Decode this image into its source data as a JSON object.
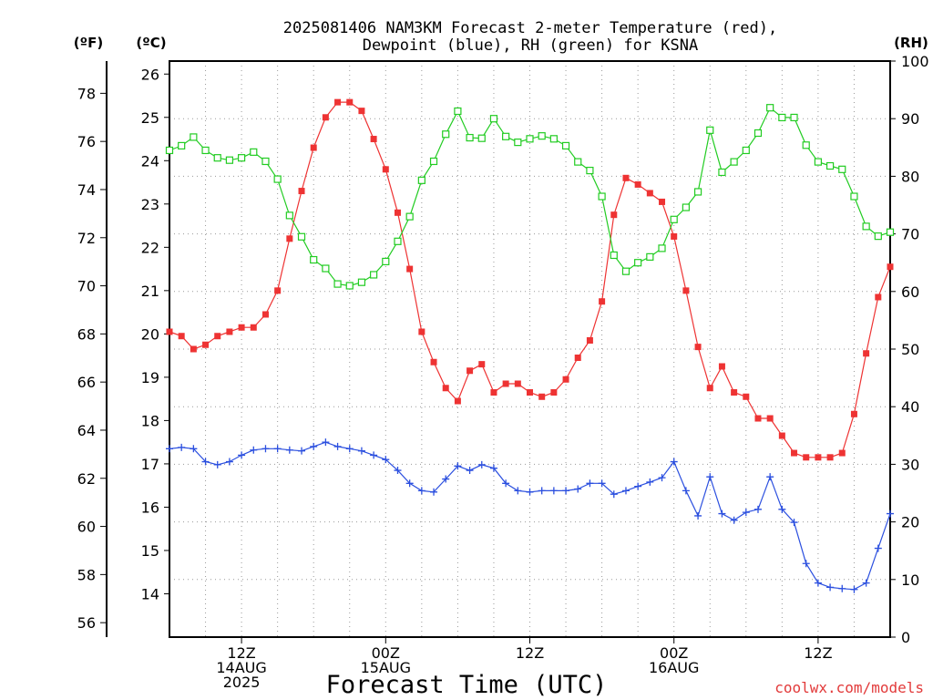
{
  "header": {
    "title_line1": "2025081406 NAM3KM Forecast 2-meter Temperature (red),",
    "title_line2": "Dewpoint (blue), RH (green) for KSNA",
    "unit_f": "(ºF)",
    "unit_c": "(ºC)",
    "unit_rh": "(RH)"
  },
  "footer": {
    "xaxis_title": "Forecast Time (UTC)",
    "credit": "coolwx.com/models"
  },
  "colors": {
    "temperature": "#ee3333",
    "dewpoint": "#2b4fdf",
    "rh": "#22cc22",
    "grid": "#999999",
    "frame": "#000000"
  },
  "chart_data": {
    "type": "line",
    "title": "2025081406 NAM3KM Forecast 2-meter Temperature (red), Dewpoint (blue), RH (green) for KSNA",
    "xlabel": "Forecast Time (UTC)",
    "x_unit": "forecast hour",
    "xlim": [
      0,
      60
    ],
    "x_ticks": [
      {
        "hour": 6,
        "lines": [
          "12Z",
          "14AUG",
          "2025"
        ]
      },
      {
        "hour": 18,
        "lines": [
          "00Z",
          "15AUG"
        ]
      },
      {
        "hour": 30,
        "lines": [
          "12Z"
        ]
      },
      {
        "hour": 42,
        "lines": [
          "00Z",
          "16AUG"
        ]
      },
      {
        "hour": 54,
        "lines": [
          "12Z"
        ]
      }
    ],
    "left_axis_c": {
      "label": "(ºC)",
      "ylim": [
        13.0,
        26.3
      ],
      "ticks": [
        14,
        15,
        16,
        17,
        18,
        19,
        20,
        21,
        22,
        23,
        24,
        25,
        26
      ]
    },
    "left_axis_f": {
      "label": "(ºF)",
      "ticks": [
        56,
        58,
        60,
        62,
        64,
        66,
        68,
        70,
        72,
        74,
        76,
        78
      ]
    },
    "right_axis_rh": {
      "label": "(RH)",
      "ylim": [
        0,
        100
      ],
      "ticks": [
        0,
        10,
        20,
        30,
        40,
        50,
        60,
        70,
        80,
        90,
        100
      ]
    },
    "grid": true,
    "series": [
      {
        "name": "Temperature",
        "axis": "celsius",
        "color": "#ee3333",
        "marker": "filled-square",
        "x": [
          0,
          1,
          2,
          3,
          4,
          5,
          6,
          7,
          8,
          9,
          10,
          11,
          12,
          13,
          14,
          15,
          16,
          17,
          18,
          19,
          20,
          21,
          22,
          23,
          24,
          25,
          26,
          27,
          28,
          29,
          30,
          31,
          32,
          33,
          34,
          35,
          36,
          37,
          38,
          39,
          40,
          41,
          42,
          43,
          44,
          45,
          46,
          47,
          48,
          49,
          50,
          51,
          52,
          53,
          54,
          55,
          56,
          57,
          58,
          59,
          60
        ],
        "y": [
          20.05,
          19.95,
          19.65,
          19.75,
          19.95,
          20.05,
          20.15,
          20.15,
          20.45,
          21.0,
          22.2,
          23.3,
          24.3,
          25.0,
          25.35,
          25.35,
          25.15,
          24.5,
          23.8,
          22.8,
          21.5,
          20.05,
          19.35,
          18.75,
          18.45,
          19.15,
          19.3,
          18.65,
          18.85,
          18.85,
          18.65,
          18.55,
          18.65,
          18.95,
          19.45,
          19.85,
          20.75,
          22.75,
          23.6,
          23.45,
          23.25,
          23.05,
          22.25,
          21.0,
          19.7,
          18.75,
          19.25,
          18.65,
          18.55,
          18.05,
          18.05,
          17.65,
          17.25,
          17.15,
          17.15,
          17.15,
          17.25,
          18.15,
          19.55,
          20.85,
          21.55
        ]
      },
      {
        "name": "Dewpoint",
        "axis": "celsius",
        "color": "#2b4fdf",
        "marker": "plus",
        "x": [
          0,
          1,
          2,
          3,
          4,
          5,
          6,
          7,
          8,
          9,
          10,
          11,
          12,
          13,
          14,
          15,
          16,
          17,
          18,
          19,
          20,
          21,
          22,
          23,
          24,
          25,
          26,
          27,
          28,
          29,
          30,
          31,
          32,
          33,
          34,
          35,
          36,
          37,
          38,
          39,
          40,
          41,
          42,
          43,
          44,
          45,
          46,
          47,
          48,
          49,
          50,
          51,
          52,
          53,
          54,
          55,
          56,
          57,
          58,
          59,
          60
        ],
        "y": [
          17.35,
          17.38,
          17.35,
          17.05,
          16.98,
          17.05,
          17.2,
          17.32,
          17.35,
          17.35,
          17.32,
          17.3,
          17.4,
          17.5,
          17.4,
          17.35,
          17.3,
          17.2,
          17.1,
          16.85,
          16.55,
          16.38,
          16.35,
          16.65,
          16.95,
          16.85,
          16.98,
          16.9,
          16.55,
          16.38,
          16.35,
          16.38,
          16.38,
          16.38,
          16.42,
          16.55,
          16.55,
          16.3,
          16.38,
          16.48,
          16.58,
          16.68,
          17.05,
          16.38,
          15.8,
          16.7,
          15.85,
          15.7,
          15.88,
          15.95,
          16.7,
          15.95,
          15.65,
          14.7,
          14.25,
          14.15,
          14.12,
          14.1,
          14.25,
          15.05,
          15.85
        ]
      },
      {
        "name": "RH",
        "axis": "rh",
        "color": "#22cc22",
        "marker": "open-square",
        "x": [
          0,
          1,
          2,
          3,
          4,
          5,
          6,
          7,
          8,
          9,
          10,
          11,
          12,
          13,
          14,
          15,
          16,
          17,
          18,
          19,
          20,
          21,
          22,
          23,
          24,
          25,
          26,
          27,
          28,
          29,
          30,
          31,
          32,
          33,
          34,
          35,
          36,
          37,
          38,
          39,
          40,
          41,
          42,
          43,
          44,
          45,
          46,
          47,
          48,
          49,
          50,
          51,
          52,
          53,
          54,
          55,
          56,
          57,
          58,
          59,
          60
        ],
        "y": [
          84.5,
          85.3,
          86.8,
          84.5,
          83.2,
          82.8,
          83.2,
          84.2,
          82.6,
          79.5,
          73.2,
          69.5,
          65.5,
          64.0,
          61.3,
          61.0,
          61.6,
          62.9,
          65.2,
          68.7,
          73.0,
          79.3,
          82.6,
          87.3,
          91.3,
          86.7,
          86.6,
          90.0,
          86.9,
          85.9,
          86.5,
          87.0,
          86.5,
          85.3,
          82.5,
          81.0,
          76.5,
          66.3,
          63.5,
          65.0,
          66.0,
          67.5,
          72.5,
          74.6,
          77.3,
          88.0,
          80.7,
          82.5,
          84.5,
          87.5,
          91.9,
          90.2,
          90.2,
          85.4,
          82.5,
          81.8,
          81.2,
          76.5,
          71.3,
          69.6,
          70.3
        ]
      }
    ]
  }
}
